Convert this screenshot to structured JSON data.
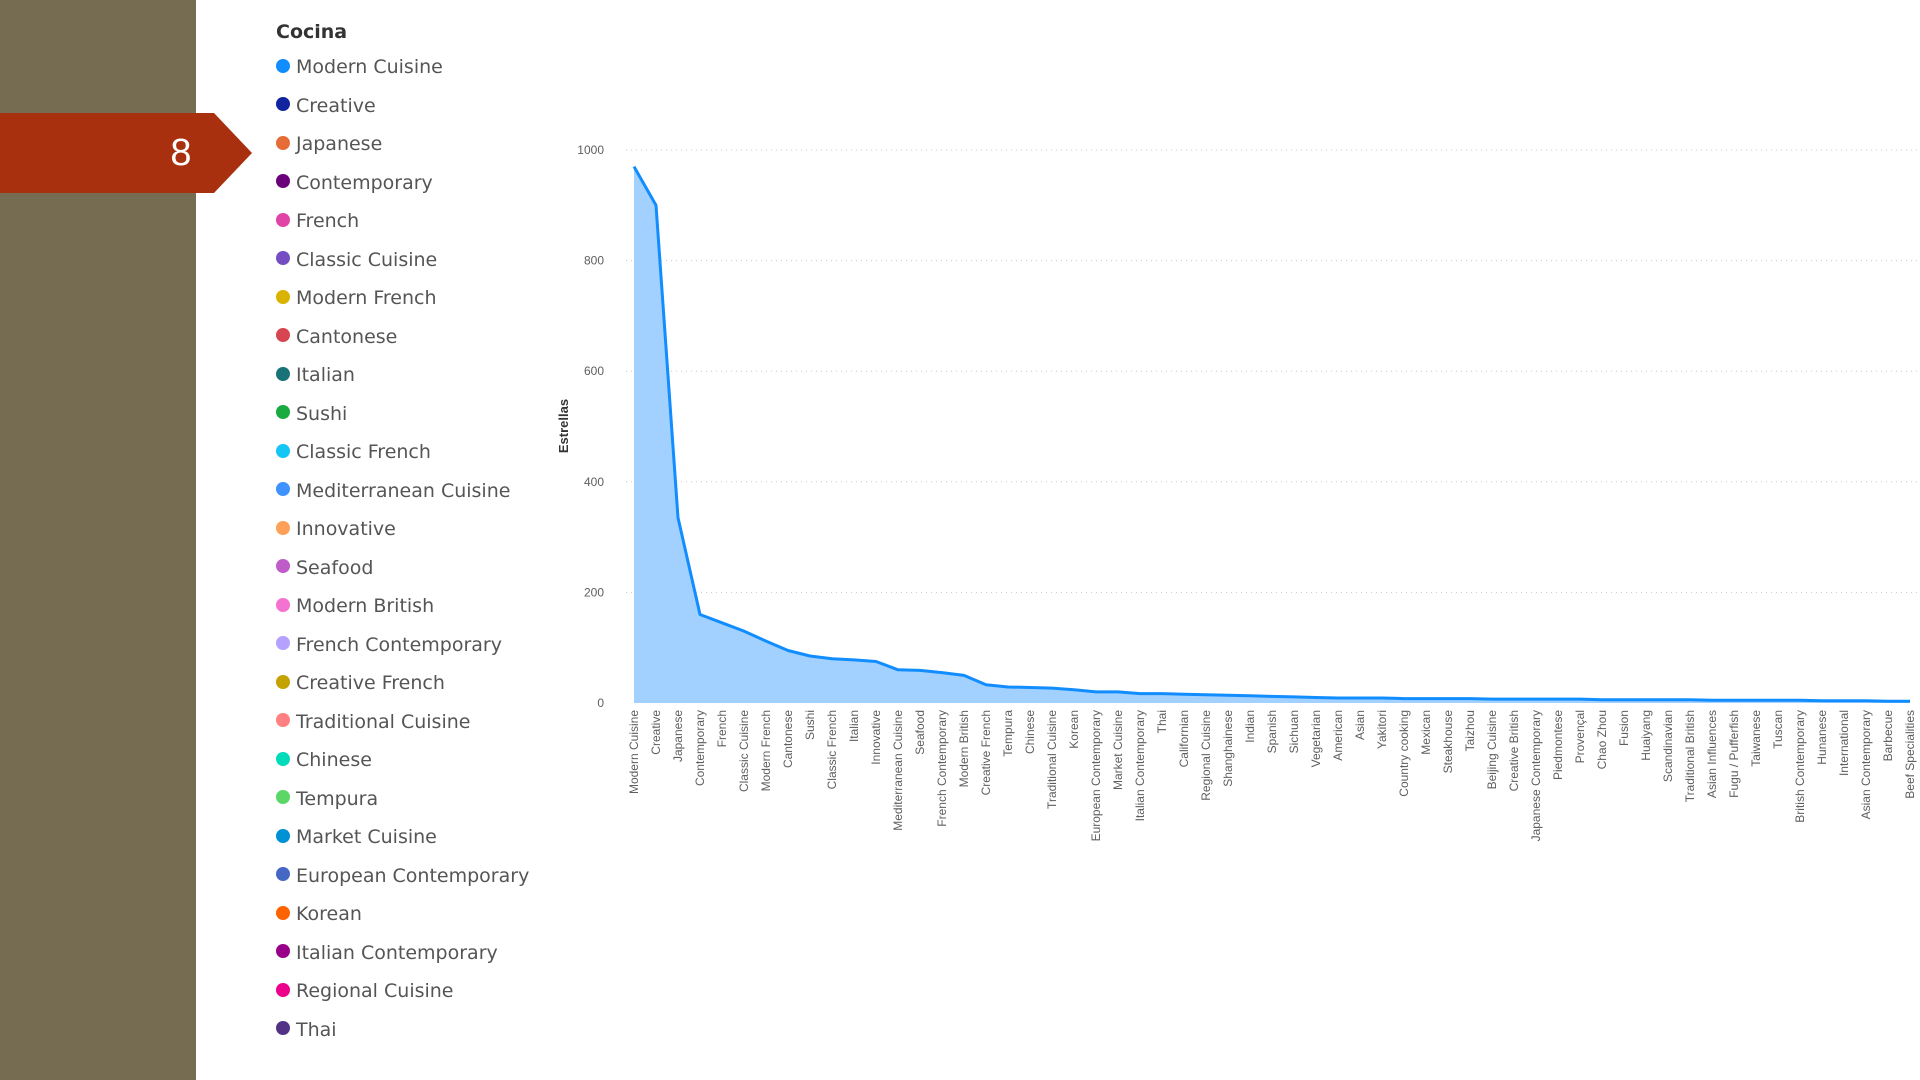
{
  "slide": {
    "number": "8",
    "accent": "#a8300f",
    "sidebar_color": "#766c52"
  },
  "legend": {
    "title": "Cocina",
    "items": [
      {
        "label": "Modern Cuisine",
        "color": "#118dff"
      },
      {
        "label": "Creative",
        "color": "#12239e"
      },
      {
        "label": "Japanese",
        "color": "#e66c37"
      },
      {
        "label": "Contemporary",
        "color": "#6b007b"
      },
      {
        "label": "French",
        "color": "#e044a7"
      },
      {
        "label": "Classic Cuisine",
        "color": "#744ec2"
      },
      {
        "label": "Modern French",
        "color": "#d9b300"
      },
      {
        "label": "Cantonese",
        "color": "#d64550"
      },
      {
        "label": "Italian",
        "color": "#197278"
      },
      {
        "label": "Sushi",
        "color": "#1aab40"
      },
      {
        "label": "Classic French",
        "color": "#15c6f4"
      },
      {
        "label": "Mediterranean Cuisine",
        "color": "#4092ff"
      },
      {
        "label": "Innovative",
        "color": "#ffa058"
      },
      {
        "label": "Seafood",
        "color": "#be5dc9"
      },
      {
        "label": "Modern British",
        "color": "#f472d0"
      },
      {
        "label": "French Contemporary",
        "color": "#b5a1ff"
      },
      {
        "label": "Creative French",
        "color": "#c4a200"
      },
      {
        "label": "Traditional Cuisine",
        "color": "#ff8080"
      },
      {
        "label": "Chinese",
        "color": "#00dbbc"
      },
      {
        "label": "Tempura",
        "color": "#5bd667"
      },
      {
        "label": "Market Cuisine",
        "color": "#0091d5"
      },
      {
        "label": "European Contemporary",
        "color": "#4668c5"
      },
      {
        "label": "Korean",
        "color": "#ff6300"
      },
      {
        "label": "Italian Contemporary",
        "color": "#99008a"
      },
      {
        "label": "Regional Cuisine",
        "color": "#ec008c"
      },
      {
        "label": "Thai",
        "color": "#533285"
      }
    ]
  },
  "chart_data": {
    "type": "area",
    "title": "",
    "xlabel": "",
    "ylabel": "Estrellas",
    "ylim": [
      0,
      1000
    ],
    "yticks": [
      0,
      200,
      400,
      600,
      800,
      1000
    ],
    "grid": true,
    "line_color": "#118dff",
    "fill_color": "#a3d1ff",
    "categories": [
      "Modern Cuisine",
      "Creative",
      "Japanese",
      "Contemporary",
      "French",
      "Classic Cuisine",
      "Modern French",
      "Cantonese",
      "Sushi",
      "Classic French",
      "Italian",
      "Innovative",
      "Mediterranean Cuisine",
      "Seafood",
      "French Contemporary",
      "Modern British",
      "Creative French",
      "Tempura",
      "Chinese",
      "Traditional Cuisine",
      "Korean",
      "European Contemporary",
      "Market Cuisine",
      "Italian Contemporary",
      "Thai",
      "Californian",
      "Regional Cuisine",
      "Shanghainese",
      "Indian",
      "Spanish",
      "Sichuan",
      "Vegetarian",
      "American",
      "Asian",
      "Yakitori",
      "Country cooking",
      "Mexican",
      "Steakhouse",
      "Taizhou",
      "Beijing Cuisine",
      "Creative British",
      "Japanese Contemporary",
      "Piedmontese",
      "Provençal",
      "Chao Zhou",
      "Fusion",
      "Huaiyang",
      "Scandinavian",
      "Traditional British",
      "Asian Influences",
      "Fugu / Pufferfish",
      "Taiwanese",
      "Tuscan",
      "British Contemporary",
      "Hunanese",
      "International",
      "Asian Contemporary",
      "Barbecue",
      "Beef Specialities"
    ],
    "values": [
      970,
      900,
      335,
      160,
      145,
      130,
      112,
      95,
      85,
      80,
      78,
      75,
      60,
      59,
      55,
      50,
      33,
      29,
      28,
      27,
      24,
      20,
      20,
      17,
      17,
      16,
      15,
      14,
      13,
      12,
      11,
      10,
      9,
      9,
      9,
      8,
      8,
      8,
      8,
      7,
      7,
      7,
      7,
      7,
      6,
      6,
      6,
      6,
      6,
      5,
      5,
      5,
      5,
      5,
      4,
      4,
      4,
      3,
      3
    ]
  }
}
